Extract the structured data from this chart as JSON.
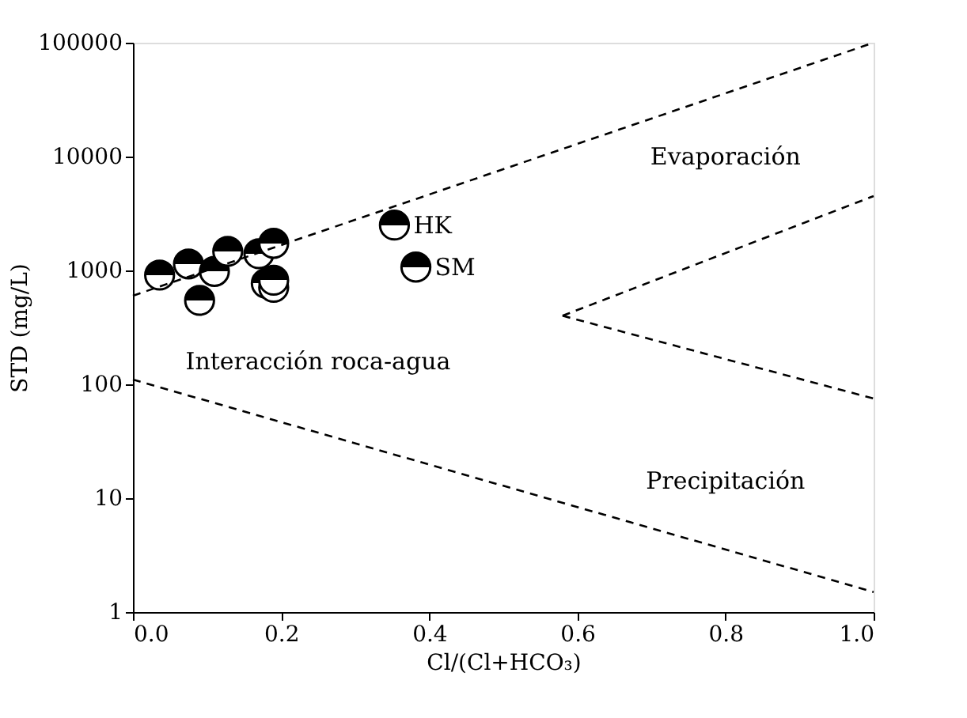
{
  "chart_data": {
    "type": "scatter",
    "xlabel": "Cl/(Cl+HCO₃)",
    "ylabel": "STD (mg/L)",
    "log": "y",
    "grid": false,
    "xlim": [
      0,
      1
    ],
    "ylim": [
      1,
      100000
    ],
    "xticks": [
      {
        "value": 0,
        "label": "0.0"
      },
      {
        "value": 0.2,
        "label": "0.2"
      },
      {
        "value": 0.4,
        "label": "0.4"
      },
      {
        "value": 0.6,
        "label": "0.6"
      },
      {
        "value": 0.8,
        "label": "0.8"
      },
      {
        "value": 1,
        "label": "1.0"
      }
    ],
    "yticks": [
      1,
      10,
      100,
      1000,
      10000,
      100000
    ],
    "series": [
      {
        "marker": "circle",
        "color": "#000000",
        "x": [
          0.036,
          0.075,
          0.11,
          0.09,
          0.128,
          0.17,
          0.19,
          0.18,
          0.19,
          0.19,
          0.353,
          0.382
        ],
        "values": [
          910,
          1140,
          980,
          545,
          1470,
          1400,
          1730,
          770,
          710,
          820,
          2500,
          1070
        ]
      },
      {
        "type": "line",
        "line_style": "dashed",
        "color": "#000000",
        "x": [
          0,
          1
        ],
        "values": [
          600,
          100000
        ]
      },
      {
        "type": "line",
        "line_style": "dashed",
        "color": "#000000",
        "x": [
          0.58,
          1
        ],
        "values": [
          400,
          4500
        ]
      },
      {
        "type": "line",
        "line_style": "dashed",
        "color": "#000000",
        "x": [
          0.58,
          1
        ],
        "values": [
          400,
          75
        ]
      },
      {
        "type": "line",
        "line_style": "dashed",
        "color": "#000000",
        "x": [
          0,
          1
        ],
        "values": [
          110,
          1.5
        ]
      }
    ],
    "annotations": [
      "Evaporación",
      "Interacción roca-agua",
      "Precipitación",
      {
        "text": "HK",
        "x": 0.353,
        "y": 2500
      },
      {
        "text": "SM",
        "x": 0.382,
        "y": 1070
      }
    ]
  }
}
